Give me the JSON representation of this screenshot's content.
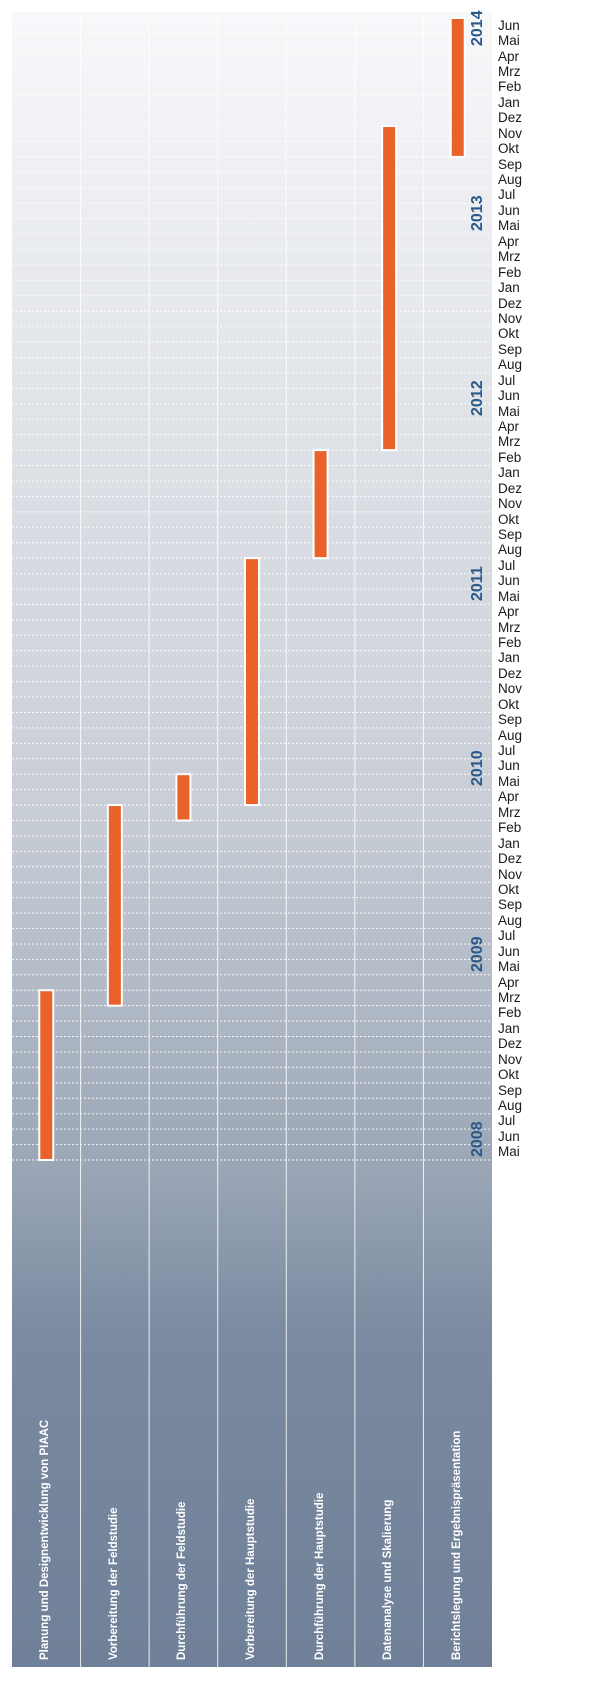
{
  "chart_data": {
    "type": "gantt",
    "time_axis": {
      "unit": "month",
      "start": "2008-05",
      "end": "2014-06",
      "month_labels": [
        "Jan",
        "Feb",
        "Mrz",
        "Apr",
        "Mai",
        "Jun",
        "Jul",
        "Aug",
        "Sep",
        "Okt",
        "Nov",
        "Dez"
      ],
      "years": [
        "2008",
        "2009",
        "2010",
        "2011",
        "2012",
        "2013",
        "2014"
      ]
    },
    "categories": [
      "Planung und Designentwicklung von PIAAC",
      "Vorbereitung der Feldstudie",
      "Durchführung der Feldstudie",
      "Vorbereitung der Hauptstudie",
      "Durchführung der Hauptstudie",
      "Datenanalyse und Skalierung",
      "Berichtslegung und Ergebnispräsentation"
    ],
    "bars": [
      {
        "start": "2008-05",
        "end": "2009-03"
      },
      {
        "start": "2009-03",
        "end": "2010-03"
      },
      {
        "start": "2010-03",
        "end": "2010-05"
      },
      {
        "start": "2010-04",
        "end": "2011-07"
      },
      {
        "start": "2011-08",
        "end": "2012-02"
      },
      {
        "start": "2012-03",
        "end": "2013-11"
      },
      {
        "start": "2013-10",
        "end": "2014-06"
      }
    ],
    "colors": {
      "bar": "#e8622a",
      "bar_border": "#ffffff",
      "year": "#2a5a8a",
      "phase_text": "#ffffff"
    },
    "grid": true
  }
}
